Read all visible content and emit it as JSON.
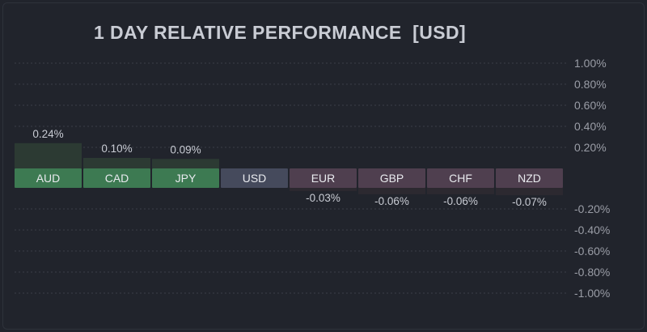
{
  "chart_data": {
    "type": "bar",
    "title": "1 DAY RELATIVE PERFORMANCE  [USD]",
    "categories": [
      "AUD",
      "CAD",
      "JPY",
      "USD",
      "EUR",
      "GBP",
      "CHF",
      "NZD"
    ],
    "values": [
      0.24,
      0.1,
      0.09,
      0,
      -0.03,
      -0.06,
      -0.06,
      -0.07
    ],
    "value_labels": [
      "0.24%",
      "0.10%",
      "0.09%",
      "",
      "-0.03%",
      "-0.06%",
      "-0.06%",
      "-0.07%"
    ],
    "y_ticks": [
      1.0,
      0.8,
      0.6,
      0.4,
      0.2,
      -0.2,
      -0.4,
      -0.6,
      -0.8,
      -1.0
    ],
    "y_tick_labels": [
      "1.00%",
      "0.80%",
      "0.60%",
      "0.40%",
      "0.20%",
      "-0.20%",
      "-0.40%",
      "-0.60%",
      "-0.80%",
      "-1.00%"
    ],
    "ylim": [
      -1.0,
      1.0
    ],
    "grid": true,
    "ytick_side": "right",
    "colors": {
      "background": "#21242c",
      "grid": "#3a3e47",
      "positive_label": "#3d7a52",
      "positive_bar": "#2c3a33",
      "neutral_label": "#454a5c",
      "negative_label": "#4f3f4f",
      "negative_bar": "#2c2930"
    }
  }
}
